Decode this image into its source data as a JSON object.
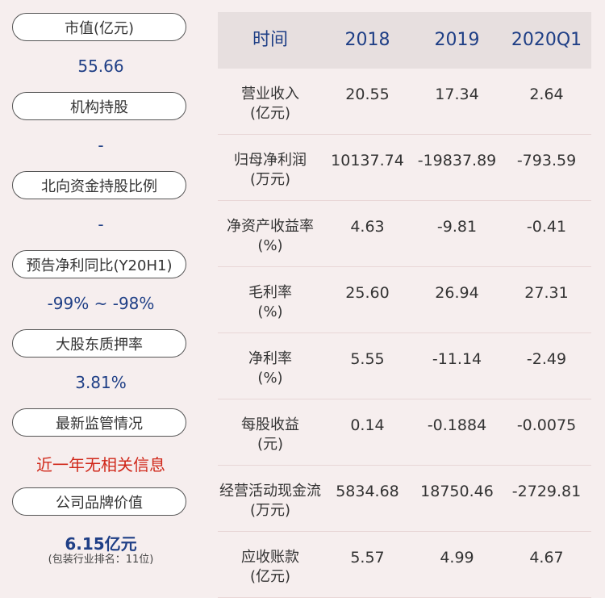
{
  "left_panel": [
    {
      "label": "市值(亿元)",
      "value": "55.66"
    },
    {
      "label": "机构持股",
      "value": "-"
    },
    {
      "label": "北向资金持股比例",
      "value": "-"
    },
    {
      "label": "预告净利同比(Y20H1)",
      "value": "-99% ~ -98%"
    },
    {
      "label": "大股东质押率",
      "value": "3.81%"
    },
    {
      "label": "最新监管情况",
      "value": "近一年无相关信息"
    },
    {
      "label": "公司品牌价值",
      "value": "6.15亿元",
      "note": "(包装行业排名：11位)"
    }
  ],
  "table": {
    "headers": [
      "时间",
      "2018",
      "2019",
      "2020Q1"
    ],
    "rows": [
      {
        "label_line1": "营业收入",
        "label_line2": "(亿元)",
        "v2018": "20.55",
        "v2019": "17.34",
        "v2020q1": "2.64"
      },
      {
        "label_line1": "归母净利润",
        "label_line2": "(万元)",
        "v2018": "10137.74",
        "v2019": "-19837.89",
        "v2020q1": "-793.59"
      },
      {
        "label_line1": "净资产收益率",
        "label_line2": "(%)",
        "v2018": "4.63",
        "v2019": "-9.81",
        "v2020q1": "-0.41"
      },
      {
        "label_line1": "毛利率",
        "label_line2": "(%)",
        "v2018": "25.60",
        "v2019": "26.94",
        "v2020q1": "27.31"
      },
      {
        "label_line1": "净利率",
        "label_line2": "(%)",
        "v2018": "5.55",
        "v2019": "-11.14",
        "v2020q1": "-2.49"
      },
      {
        "label_line1": "每股收益",
        "label_line2": "(元)",
        "v2018": "0.14",
        "v2019": "-0.1884",
        "v2020q1": "-0.0075"
      },
      {
        "label_line1": "经营活动现金流",
        "label_line2": "(万元)",
        "v2018": "5834.68",
        "v2019": "18750.46",
        "v2020q1": "-2729.81"
      },
      {
        "label_line1": "应收账款",
        "label_line2": "(亿元)",
        "v2018": "5.57",
        "v2019": "4.99",
        "v2020q1": "4.67"
      }
    ]
  },
  "colors": {
    "accent": "#1f3f86",
    "alert": "#d0281a",
    "background": "#f6eeee",
    "header_bg": "#e7dfdf"
  }
}
